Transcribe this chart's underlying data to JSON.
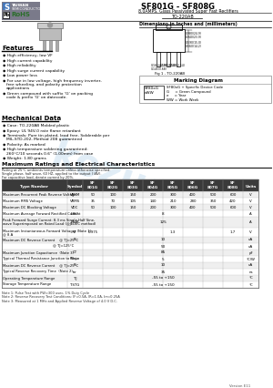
{
  "title": "SF801G - SF808G",
  "subtitle": "8.0AMPS. Glass Passivated Super Fast Rectifiers",
  "package": "TO-220AB",
  "bg_color": "#ffffff",
  "features_title": "Features",
  "features": [
    "High efficiency, low VF",
    "High current capability",
    "High reliability",
    "High surge current capability",
    "Low power loss",
    "For use in low voltage, high frequency inverter,\nfree wheeling, and polarity protection\napplications",
    "Green compound with suffix 'G' on packing\ncode & prefix 'G' on datecode."
  ],
  "mech_title": "Mechanical Data",
  "mech_items": [
    "Case: TO-220AB Molded plastic",
    "Epoxy: UL 94V-0 rate flame retardant",
    "Terminals: Pure tin plated, lead free. Solderable per\nMIL-STD-202, Method 208 guaranteed",
    "Polarity: As marked",
    "High temperature soldering guaranteed:\n260°C/10 seconds 0.6\" (1.00mm) from case",
    "Weight: 1.80 grams"
  ],
  "max_title": "Maximum Ratings and Electrical Characteristics",
  "max_sub1": "Rating at 25°C ambients temperature unless otherwise specified.",
  "max_sub2": "Single phase, half wave, 60 HZ, applied to the output I (AV).",
  "max_sub3": "For capacitive load, derate current by 20%.",
  "col_headers": [
    "SF\n801G",
    "SF\n802G",
    "SF\n803G",
    "SF\n804G",
    "SF\n805G",
    "SF\n806G",
    "SF\n807G",
    "SF\n808G"
  ],
  "rows": [
    {
      "param": "Maximum Recurrent Peak Reverse Voltage",
      "symbol": "VRRM",
      "vals": [
        "50",
        "100",
        "150",
        "200",
        "300",
        "400",
        "500",
        "600"
      ],
      "units": "V",
      "span": false
    },
    {
      "param": "Maximum RMS Voltage",
      "symbol": "VRMS",
      "vals": [
        "35",
        "70",
        "105",
        "140",
        "210",
        "280",
        "350",
        "420"
      ],
      "units": "V",
      "span": false
    },
    {
      "param": "Maximum DC Blocking Voltage",
      "symbol": "VDC",
      "vals": [
        "50",
        "100",
        "150",
        "200",
        "300",
        "400",
        "500",
        "600"
      ],
      "units": "V",
      "span": false
    },
    {
      "param": "Maximum Average Forward Rectified Current",
      "symbol": "I(AV)",
      "vals": [
        "8"
      ],
      "units": "A",
      "span": true
    },
    {
      "param": "Peak Forward Surge Current: 8.3 ms Single Half Sine-\nwave Superimposed on Rated Load (@JEDEC method)",
      "symbol": "IFSM",
      "vals": [
        "125"
      ],
      "units": "A",
      "span": true
    },
    {
      "param": "Maximum Instantaneous Forward Voltage  (Note 1)\n@ 8 A",
      "symbol": "VF",
      "vals": [
        "0.975",
        "",
        "",
        "",
        "1.3",
        "",
        "",
        "1.7"
      ],
      "units": "V",
      "span": false,
      "grouped": true
    },
    {
      "param": "Maximum DC Reverse Current    @ TJ=25°C",
      "symbol": "IR",
      "vals": [
        "10"
      ],
      "units": "uA",
      "span": true
    },
    {
      "param": "                                            @ TJ=125°C",
      "symbol": "",
      "vals": [
        "50"
      ],
      "units": "uA",
      "span": true
    },
    {
      "param": "Maximum Junction Capacitance  (Note 3)",
      "symbol": "CT",
      "vals": [
        "85"
      ],
      "units": "pF",
      "span": true
    },
    {
      "param": "Typical Thermal Resistance Junction to Case",
      "symbol": "Rthj-c",
      "vals": [
        "5"
      ],
      "units": "°C/W",
      "span": true
    },
    {
      "param": "Maximum DC Reverse Current    @ TJ=25°C",
      "symbol": "IR",
      "vals": [
        "10"
      ],
      "units": "uA",
      "span": true
    },
    {
      "param": "Typical Reverse Recovery Time  (Note 2)",
      "symbol": "trr",
      "vals": [
        "35"
      ],
      "units": "ns",
      "span": true
    },
    {
      "param": "Operating Temperature Range",
      "symbol": "TJ",
      "vals": [
        "-55 to +150"
      ],
      "units": "°C",
      "span": true
    },
    {
      "param": "Storage Temperature Range",
      "symbol": "TSTG",
      "vals": [
        "-55 to +150"
      ],
      "units": "°C",
      "span": true
    }
  ],
  "notes": [
    "Note 1: Pulse Test with PW=300 usec, 1% Duty Cycle",
    "Note 2: Reverse Recovery Test Conditions: IF=0.5A, IR=1.0A, Irr=0.25A",
    "Note 3: Measured at 1 MHz and Applied Reverse Voltage of 4.0 V D.C."
  ],
  "version": "Version E11",
  "dim_title": "Dimensions in Inches and (millimeters)",
  "marking_title": "Marking Diagram",
  "marking_lines": [
    "SF80xG + Specific Device Code",
    "G     = Green Compound",
    "e     = Year",
    "WW = Work Week"
  ],
  "watermark": "kozus.ru",
  "wm_color": "#c8dff0"
}
